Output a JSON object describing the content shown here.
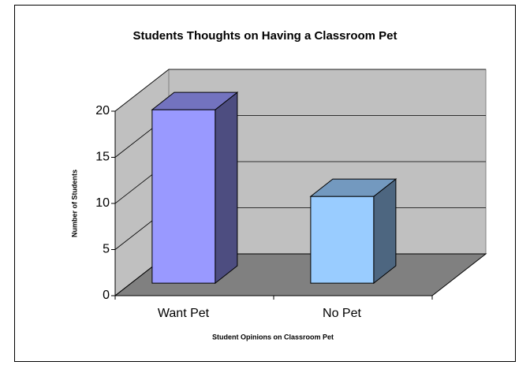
{
  "chart_data": {
    "type": "bar3d",
    "title": "Students Thoughts on Having a Classroom Pet",
    "x_label": "Student Opinions on Classroom Pet",
    "y_label": "Number of Students",
    "categories": [
      "Want Pet",
      "No Pet"
    ],
    "values": [
      20,
      10
    ],
    "colors": [
      "#9999ff",
      "#99ccff"
    ],
    "ylim": [
      0,
      20
    ],
    "yticks": [
      0,
      5,
      10,
      15,
      20
    ],
    "grid": true
  }
}
